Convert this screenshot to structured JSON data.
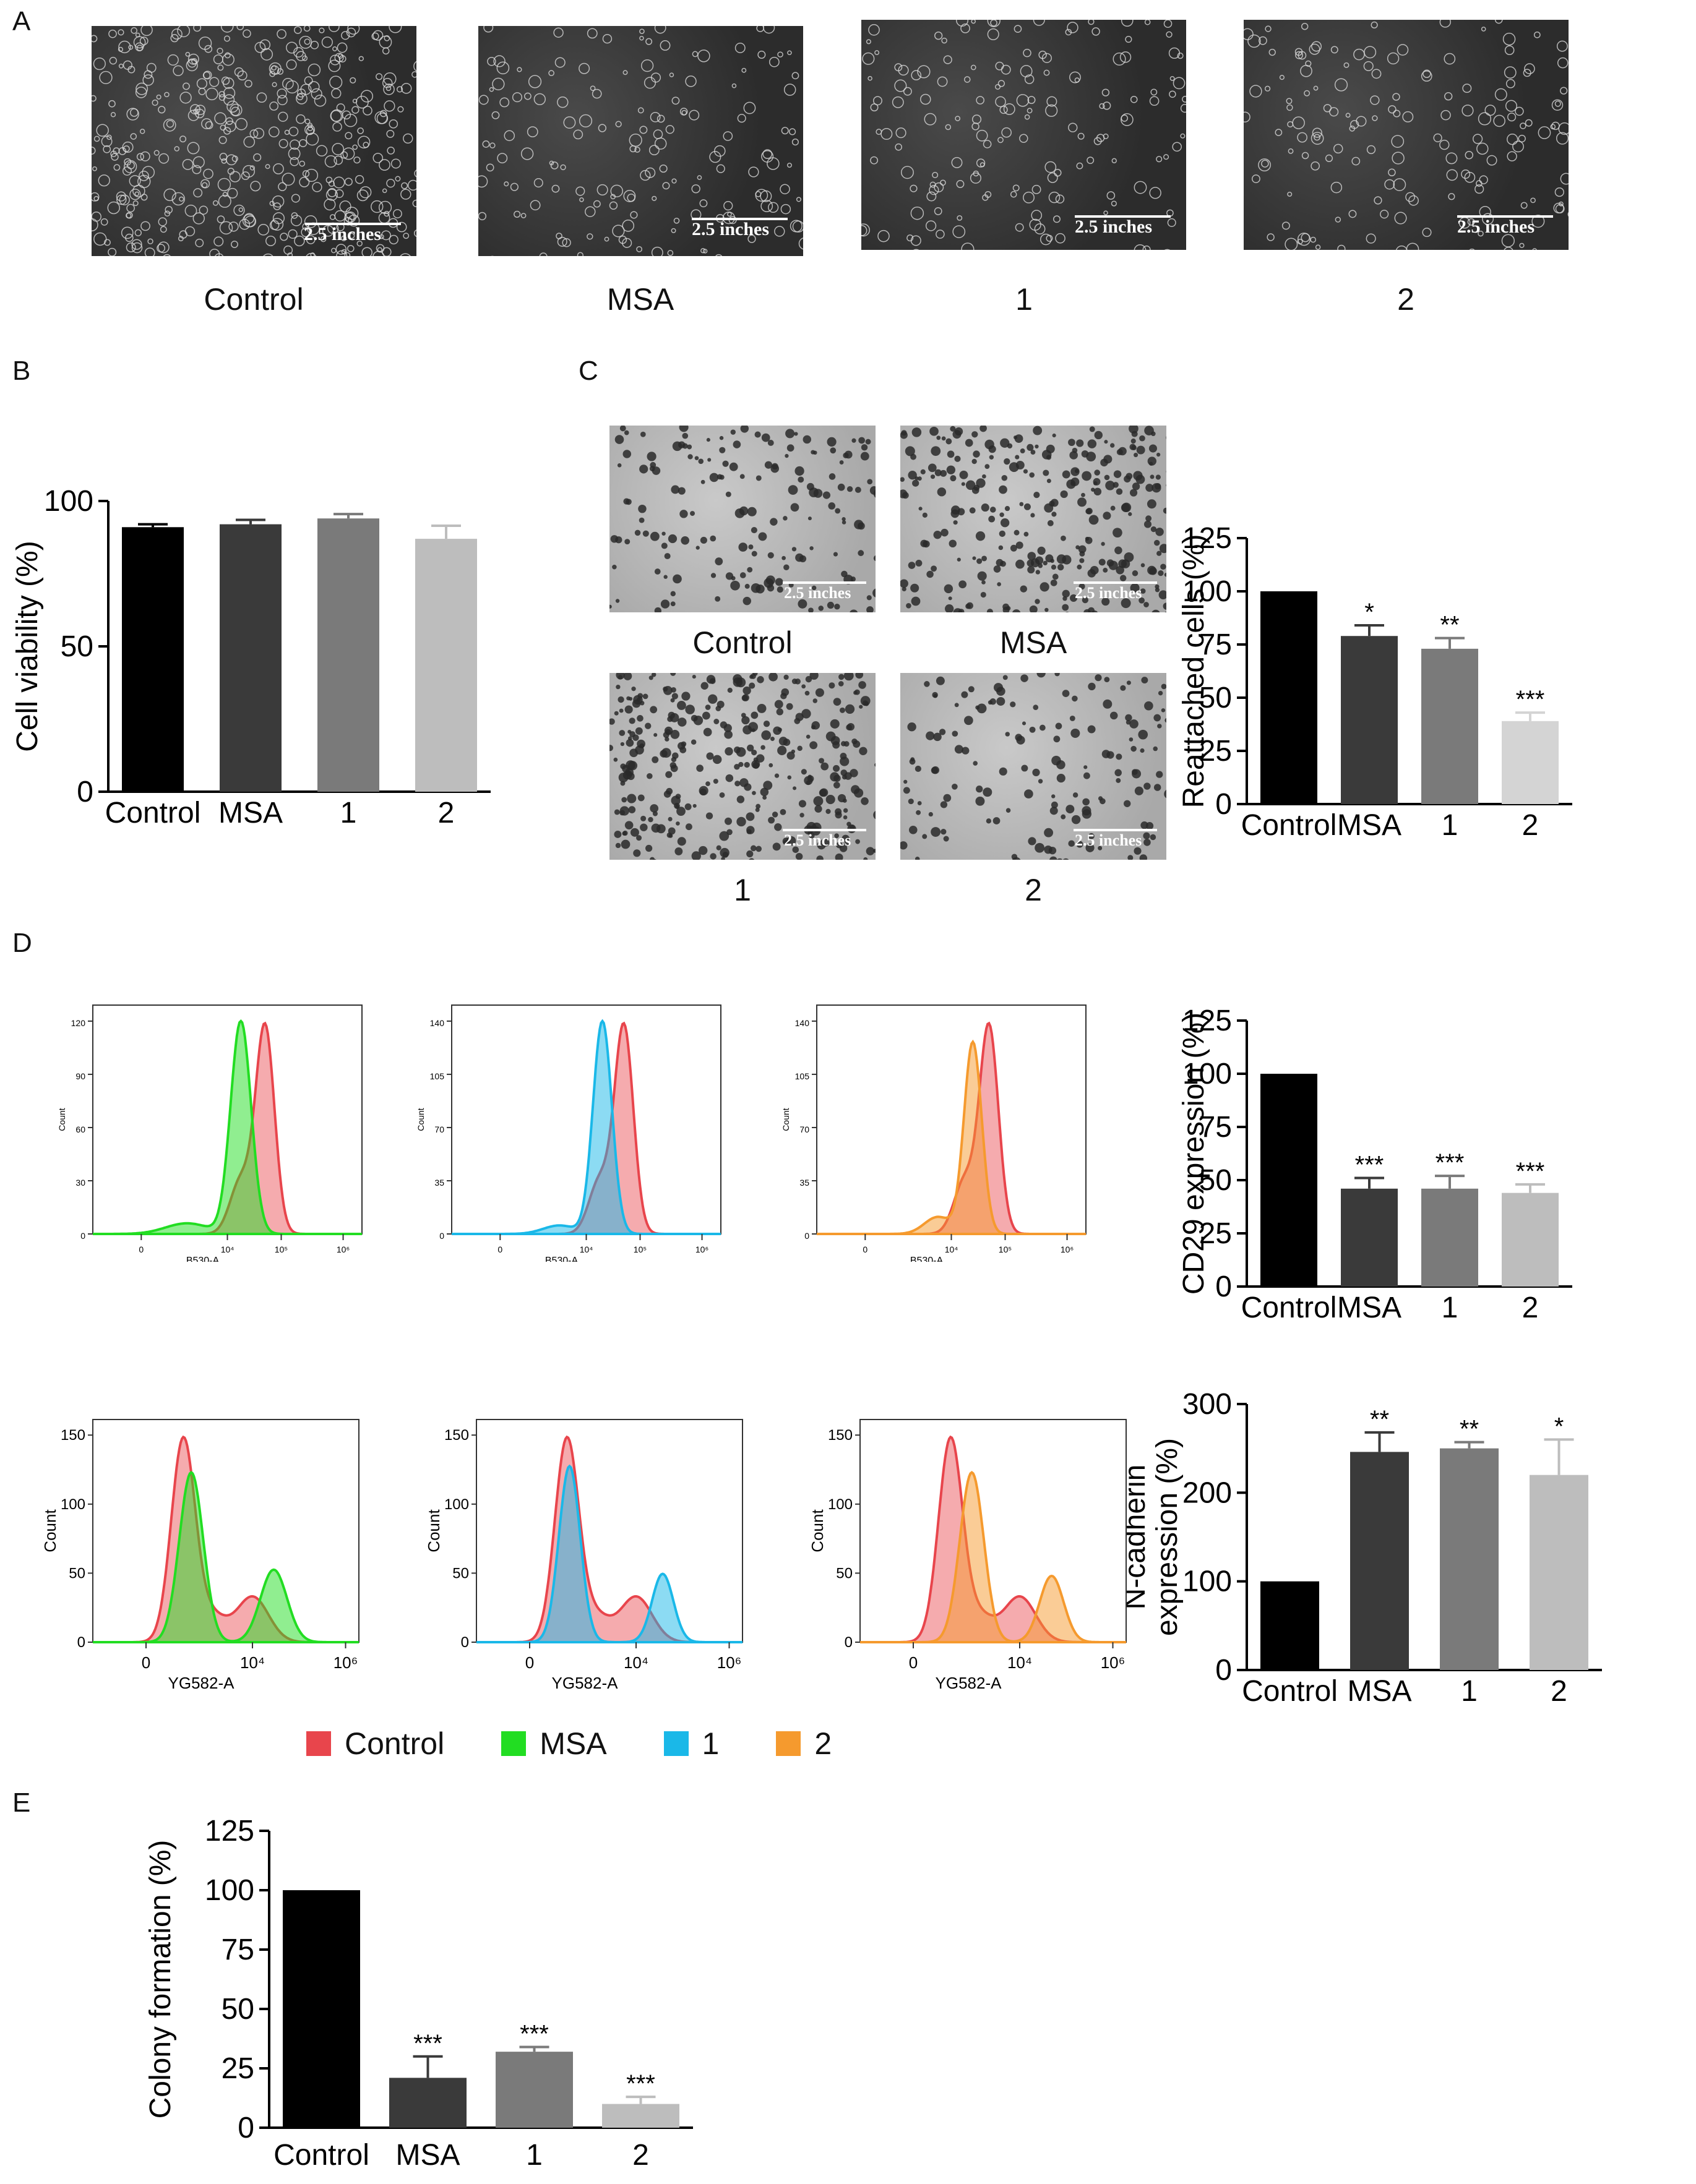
{
  "panels": {
    "A": "A",
    "B": "B",
    "C": "C",
    "D": "D",
    "E": "E"
  },
  "panel_a": {
    "scale_label": "2.5 inches",
    "captions": [
      "Control",
      "MSA",
      "1",
      "2"
    ]
  },
  "panel_c": {
    "scale_label": "2.5 inches",
    "captions": [
      "Control",
      "MSA",
      "1",
      "2"
    ]
  },
  "flow": {
    "top_xlabels": [
      "B530-A",
      "B530-A",
      "B530-A"
    ],
    "top_ylabel": "Count",
    "bottom_xlabel": "YG582-A",
    "bottom_ylabel": "Count",
    "top_yticks": [
      "0",
      "30",
      "60",
      "90",
      "120"
    ],
    "top_yticks_b": [
      "0",
      "35",
      "70",
      "105",
      "140"
    ],
    "top_xticks": [
      "0",
      "10⁴",
      "10⁵",
      "10⁶"
    ],
    "bottom_yticks": [
      "0",
      "50",
      "100",
      "150"
    ],
    "bottom_xticks": [
      "0",
      "10⁴",
      "10⁶"
    ]
  },
  "legend": {
    "items": [
      {
        "label": "Control",
        "color": "#e8454c"
      },
      {
        "label": "MSA",
        "color": "#22dd22"
      },
      {
        "label": "1",
        "color": "#1ab8e8"
      },
      {
        "label": "2",
        "color": "#f59a2e"
      }
    ]
  },
  "chart_data": [
    {
      "id": "B",
      "type": "bar",
      "categories": [
        "Control",
        "MSA",
        "1",
        "2"
      ],
      "values": [
        91,
        92,
        94,
        87
      ],
      "errors": [
        1,
        1.5,
        1.5,
        4.5
      ],
      "ylabel": "Cell viability (%)",
      "xlabel": "",
      "ylim": [
        0,
        100
      ],
      "yticks": [
        0,
        50,
        100
      ],
      "significance": [
        "",
        "",
        "",
        ""
      ],
      "colors": [
        "#000000",
        "#3a3a3a",
        "#7a7a7a",
        "#bdbdbd"
      ]
    },
    {
      "id": "C",
      "type": "bar",
      "categories": [
        "Control",
        "MSA",
        "1",
        "2"
      ],
      "values": [
        100,
        79,
        73,
        39
      ],
      "errors": [
        0,
        5,
        5,
        4
      ],
      "ylabel": "Reattached cells (%)",
      "xlabel": "",
      "ylim": [
        0,
        125
      ],
      "yticks": [
        0,
        25,
        50,
        75,
        100,
        125
      ],
      "significance": [
        "",
        "*",
        "**",
        "***"
      ],
      "colors": [
        "#000000",
        "#3a3a3a",
        "#7a7a7a",
        "#d4d4d4"
      ]
    },
    {
      "id": "D1",
      "type": "bar",
      "categories": [
        "Control",
        "MSA",
        "1",
        "2"
      ],
      "values": [
        100,
        46,
        46,
        44
      ],
      "errors": [
        0,
        5,
        6,
        4
      ],
      "ylabel": "CD29 expression (%)",
      "xlabel": "",
      "ylim": [
        0,
        125
      ],
      "yticks": [
        0,
        25,
        50,
        75,
        100,
        125
      ],
      "significance": [
        "",
        "***",
        "***",
        "***"
      ],
      "colors": [
        "#000000",
        "#3a3a3a",
        "#7a7a7a",
        "#bdbdbd"
      ]
    },
    {
      "id": "D2",
      "type": "bar",
      "categories": [
        "Control",
        "MSA",
        "1",
        "2"
      ],
      "values": [
        100,
        246,
        250,
        220
      ],
      "errors": [
        0,
        22,
        7,
        40
      ],
      "ylabel": "N-cadherin expression (%)",
      "ylabel_lines": [
        "N-cadherin",
        "expression (%)"
      ],
      "xlabel": "",
      "ylim": [
        0,
        300
      ],
      "yticks": [
        0,
        100,
        200,
        300
      ],
      "significance": [
        "",
        "**",
        "**",
        "*"
      ],
      "colors": [
        "#000000",
        "#3a3a3a",
        "#7a7a7a",
        "#bdbdbd"
      ]
    },
    {
      "id": "E",
      "type": "bar",
      "categories": [
        "Control",
        "MSA",
        "1",
        "2"
      ],
      "values": [
        100,
        21,
        32,
        10
      ],
      "errors": [
        0,
        9,
        2,
        3
      ],
      "ylabel": "Colony formation (%)",
      "xlabel": "",
      "ylim": [
        0,
        125
      ],
      "yticks": [
        0,
        25,
        50,
        75,
        100,
        125
      ],
      "significance": [
        "",
        "***",
        "***",
        "***"
      ],
      "colors": [
        "#000000",
        "#3a3a3a",
        "#7a7a7a",
        "#bdbdbd"
      ]
    }
  ]
}
